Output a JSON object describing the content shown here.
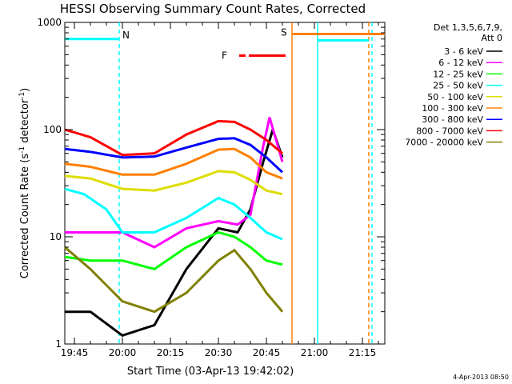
{
  "chart_data": {
    "type": "line",
    "title": "HESSI Observing Summary Count Rates, Corrected",
    "xlabel": "Start Time (03-Apr-13 19:42:02)",
    "ylabel_main": "Corrected Count Rate (s",
    "ylabel_sup1": "-1",
    "ylabel_mid": " detector",
    "ylabel_sup2": "-1",
    "ylabel_end": ")",
    "y_scale": "log",
    "ylim": [
      1,
      1000
    ],
    "xlim": [
      "19:42",
      "21:22"
    ],
    "x_ticks": [
      "19:45",
      "20:00",
      "20:15",
      "20:30",
      "20:45",
      "21:00",
      "21:15"
    ],
    "y_ticks": [
      "1",
      "10",
      "100",
      "1000"
    ],
    "legend": {
      "header1": "Det 1,3,5,6,7,9,",
      "header2": "Att 0",
      "position": "right"
    },
    "series": [
      {
        "name": "3 - 6 keV",
        "color": "#000000",
        "x": [
          "19:42",
          "19:50",
          "20:00",
          "20:10",
          "20:20",
          "20:30",
          "20:36",
          "20:40",
          "20:44",
          "20:47",
          "20:50"
        ],
        "values": [
          2,
          2,
          1.2,
          1.5,
          5,
          12,
          11,
          18,
          50,
          100,
          55
        ]
      },
      {
        "name": "6 - 12 keV",
        "color": "#ff00ff",
        "x": [
          "19:42",
          "19:55",
          "20:00",
          "20:10",
          "20:20",
          "20:30",
          "20:36",
          "20:40",
          "20:44",
          "20:46",
          "20:50"
        ],
        "values": [
          11,
          11,
          11,
          8,
          12,
          14,
          13,
          16,
          70,
          130,
          50
        ]
      },
      {
        "name": "12 - 25 keV",
        "color": "#00ff00",
        "x": [
          "19:42",
          "19:50",
          "20:00",
          "20:10",
          "20:20",
          "20:30",
          "20:35",
          "20:40",
          "20:45",
          "20:50"
        ],
        "values": [
          6.5,
          6,
          6,
          5,
          8,
          11,
          10,
          8,
          6,
          5.5
        ]
      },
      {
        "name": "25 - 50 keV",
        "color": "#00ffff",
        "x": [
          "19:42",
          "19:48",
          "19:55",
          "20:00",
          "20:10",
          "20:20",
          "20:30",
          "20:35",
          "20:40",
          "20:45",
          "20:50"
        ],
        "values": [
          28,
          25,
          18,
          11,
          11,
          15,
          23,
          20,
          15,
          11,
          9.5
        ]
      },
      {
        "name": "50 - 100 keV",
        "color": "#dddd00",
        "x": [
          "19:42",
          "19:50",
          "20:00",
          "20:10",
          "20:20",
          "20:30",
          "20:35",
          "20:40",
          "20:45",
          "20:50"
        ],
        "values": [
          37,
          35,
          28,
          27,
          32,
          41,
          40,
          34,
          27,
          25
        ]
      },
      {
        "name": "100 - 300 keV",
        "color": "#ff8000",
        "x": [
          "19:42",
          "19:50",
          "20:00",
          "20:10",
          "20:20",
          "20:30",
          "20:35",
          "20:40",
          "20:45",
          "20:50"
        ],
        "values": [
          48,
          45,
          38,
          38,
          48,
          65,
          66,
          55,
          40,
          35
        ]
      },
      {
        "name": "300 - 800 keV",
        "color": "#0000ff",
        "x": [
          "19:42",
          "19:50",
          "20:00",
          "20:10",
          "20:20",
          "20:30",
          "20:35",
          "20:40",
          "20:45",
          "20:50"
        ],
        "values": [
          66,
          62,
          55,
          56,
          68,
          82,
          83,
          72,
          55,
          40
        ]
      },
      {
        "name": "800 - 7000 keV",
        "color": "#ff0000",
        "x": [
          "19:42",
          "19:50",
          "20:00",
          "20:10",
          "20:20",
          "20:30",
          "20:35",
          "20:40",
          "20:45",
          "20:50"
        ],
        "values": [
          100,
          85,
          58,
          60,
          90,
          120,
          118,
          100,
          80,
          60
        ]
      },
      {
        "name": "7000 - 20000 keV",
        "color": "#808000",
        "x": [
          "19:42",
          "19:50",
          "20:00",
          "20:10",
          "20:20",
          "20:30",
          "20:35",
          "20:40",
          "20:45",
          "20:50"
        ],
        "values": [
          8,
          5,
          2.5,
          2,
          3,
          6,
          7.5,
          5,
          3,
          2
        ]
      }
    ],
    "annotations": [
      {
        "label": "N",
        "color": "#00ffff",
        "x_start": "19:42",
        "x_end": "19:59",
        "y": 700
      },
      {
        "label": "S",
        "color": "#ff8000",
        "x_start": "20:53",
        "x_end": "21:22",
        "y": 780
      },
      {
        "label": "",
        "color": "#00ffff",
        "x_start": "21:01",
        "x_end": "21:17",
        "y": 680
      },
      {
        "label": "F",
        "color": "#ff0000",
        "x_start": "20:34",
        "x_end": "20:51",
        "y": 490
      }
    ],
    "vertical_lines": [
      {
        "x": "19:59",
        "color": "#00ffff",
        "dashed": true
      },
      {
        "x": "20:53",
        "color": "#ff8000",
        "dashed": false
      },
      {
        "x": "21:01",
        "color": "#00ffff",
        "dashed": false
      },
      {
        "x": "21:17",
        "color": "#ff8000",
        "dashed": true
      },
      {
        "x": "21:18",
        "color": "#00ffff",
        "dashed": true
      }
    ],
    "grid": false,
    "timestamp": "4-Apr-2013 08:50"
  }
}
